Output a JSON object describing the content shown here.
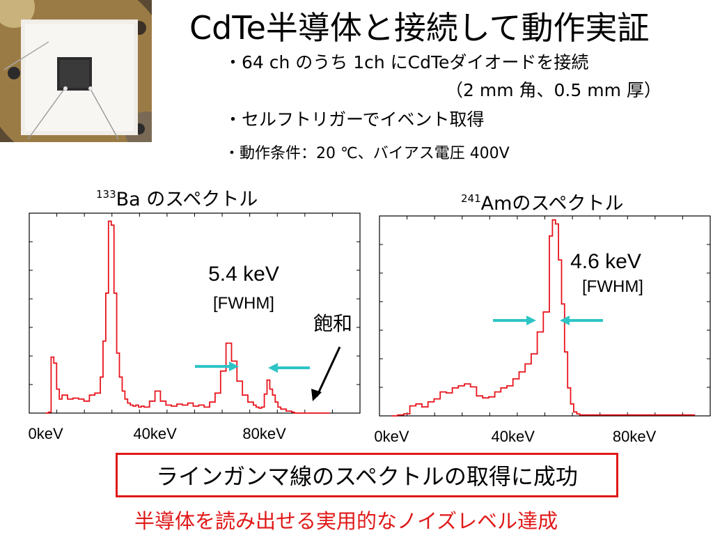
{
  "slide": {
    "title": "CdTe半導体と接続して動作実証",
    "bullets": {
      "b1": "・64 ch のうち 1ch にCdTeダイオードを接続",
      "b1_cont": "（2 mm 角、0.5 mm 厚）",
      "b2": "・セルフトリガーでイベント取得",
      "b3": "・動作条件：20 ℃、バイアス電圧 400V"
    },
    "callout": "ラインガンマ線のスペクトルの取得に成功",
    "conclusion": "半導体を読み出せる実用的なノイズレベル達成"
  },
  "colors": {
    "spectrum": "#e8141c",
    "arrow": "#2ec4c6",
    "callout_border": "#e01818",
    "conclusion_text": "#e01818"
  },
  "photo": {
    "description_icon": "cdte-diode-photo"
  },
  "chart_data": [
    {
      "type": "line",
      "isotope_mass": "133",
      "title_suffix": "Ba のスペクトル",
      "xlabel": "",
      "ylabel": "",
      "xlim": [
        -6,
        115
      ],
      "ylim": [
        0,
        1000
      ],
      "x_ticks": [
        0,
        40,
        80
      ],
      "x_tick_labels": [
        "0keV",
        "40keV",
        "80keV"
      ],
      "y_ticks_count": 7,
      "grid": false,
      "series": [
        {
          "values_x": [
            0,
            1,
            2,
            3,
            4,
            5,
            6,
            8,
            10,
            12,
            14,
            16,
            18,
            20,
            21,
            22,
            23,
            24,
            25,
            26,
            27,
            28,
            29,
            30,
            31,
            32,
            33,
            34,
            35,
            36,
            38,
            40,
            42,
            44,
            46,
            48,
            50,
            52,
            54,
            56,
            58,
            60,
            62,
            64,
            66,
            68,
            70,
            72,
            74,
            76,
            77,
            78,
            79,
            80,
            81,
            82,
            83,
            84,
            85,
            86,
            88,
            90,
            91,
            92,
            93,
            94,
            95,
            96,
            97,
            98,
            100,
            102,
            104
          ],
          "values_y": [
            0,
            5,
            280,
            250,
            120,
            70,
            90,
            70,
            75,
            70,
            60,
            90,
            100,
            180,
            360,
            600,
            960,
            940,
            600,
            300,
            180,
            110,
            70,
            50,
            40,
            35,
            40,
            30,
            35,
            30,
            60,
            110,
            60,
            40,
            35,
            45,
            40,
            50,
            35,
            40,
            30,
            55,
            100,
            210,
            350,
            260,
            160,
            90,
            55,
            40,
            30,
            25,
            30,
            95,
            165,
            120,
            90,
            55,
            30,
            20,
            10,
            5,
            0,
            0,
            0,
            0,
            0,
            0,
            0,
            0,
            0,
            0,
            0
          ]
        }
      ],
      "annotations": {
        "fwhm_value": "5.4 keV",
        "fwhm_tag": "[FWHM]",
        "saturation": "飽和"
      }
    },
    {
      "type": "line",
      "isotope_mass": "241",
      "title_suffix": "Amのスペクトル",
      "xlabel": "",
      "ylabel": "",
      "xlim": [
        -4,
        105
      ],
      "ylim": [
        0,
        1000
      ],
      "x_ticks": [
        0,
        40,
        80
      ],
      "x_tick_labels": [
        "0keV",
        "40keV",
        "80keV"
      ],
      "y_ticks_count": 7,
      "grid": false,
      "series": [
        {
          "values_x": [
            0,
            2,
            4,
            6,
            8,
            10,
            12,
            14,
            16,
            18,
            20,
            22,
            24,
            26,
            28,
            30,
            32,
            34,
            36,
            38,
            40,
            42,
            44,
            46,
            48,
            50,
            52,
            53,
            54,
            55,
            56,
            57,
            58,
            59,
            60,
            61,
            62,
            63,
            64,
            65,
            66,
            68,
            70,
            75,
            80,
            90,
            100
          ],
          "values_y": [
            0,
            5,
            10,
            50,
            60,
            45,
            70,
            85,
            120,
            115,
            140,
            150,
            160,
            145,
            100,
            90,
            95,
            120,
            140,
            150,
            185,
            220,
            260,
            310,
            420,
            520,
            900,
            980,
            960,
            780,
            560,
            320,
            140,
            60,
            20,
            10,
            5,
            5,
            5,
            5,
            5,
            5,
            5,
            5,
            5,
            5,
            5
          ]
        }
      ],
      "annotations": {
        "fwhm_value": "4.6 keV",
        "fwhm_tag": "[FWHM]"
      }
    }
  ]
}
